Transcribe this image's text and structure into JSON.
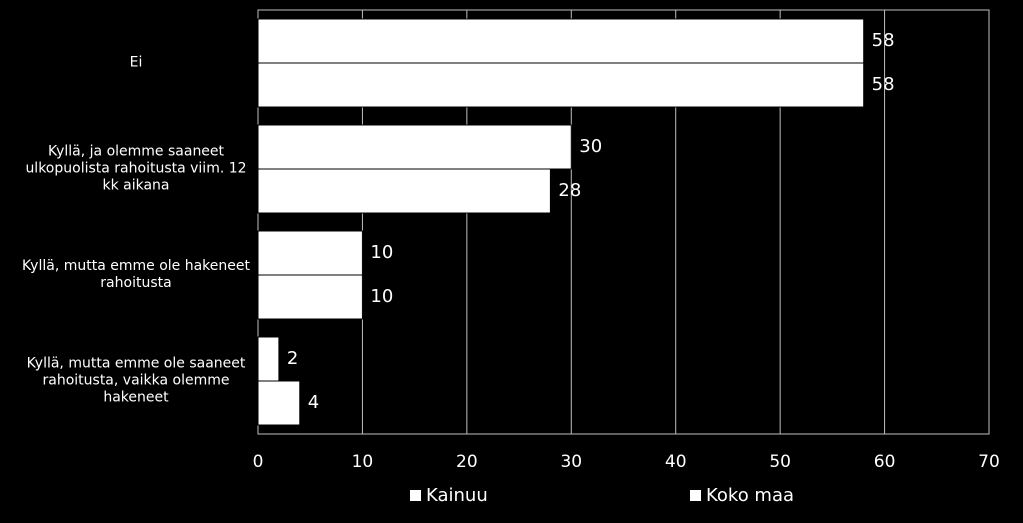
{
  "chart_data": {
    "type": "bar",
    "orientation": "horizontal",
    "categories": [
      "Ei",
      "Kyllä, ja olemme saaneet ulkopuolista rahoitusta viim. 12 kk aikana",
      "Kyllä, mutta emme ole hakeneet rahoitusta",
      "Kyllä, mutta emme ole saaneet rahoitusta, vaikka olemme hakeneet"
    ],
    "series": [
      {
        "name": "Kainuu",
        "color": "#ffffff",
        "values": [
          58,
          30,
          10,
          2
        ]
      },
      {
        "name": "Koko maa",
        "color": "#ffffff",
        "values": [
          58,
          28,
          10,
          4
        ]
      }
    ],
    "xlim": [
      0,
      70
    ],
    "xticks": [
      0,
      10,
      20,
      30,
      40,
      50,
      60,
      70
    ],
    "grid": true,
    "legend": "bottom"
  }
}
